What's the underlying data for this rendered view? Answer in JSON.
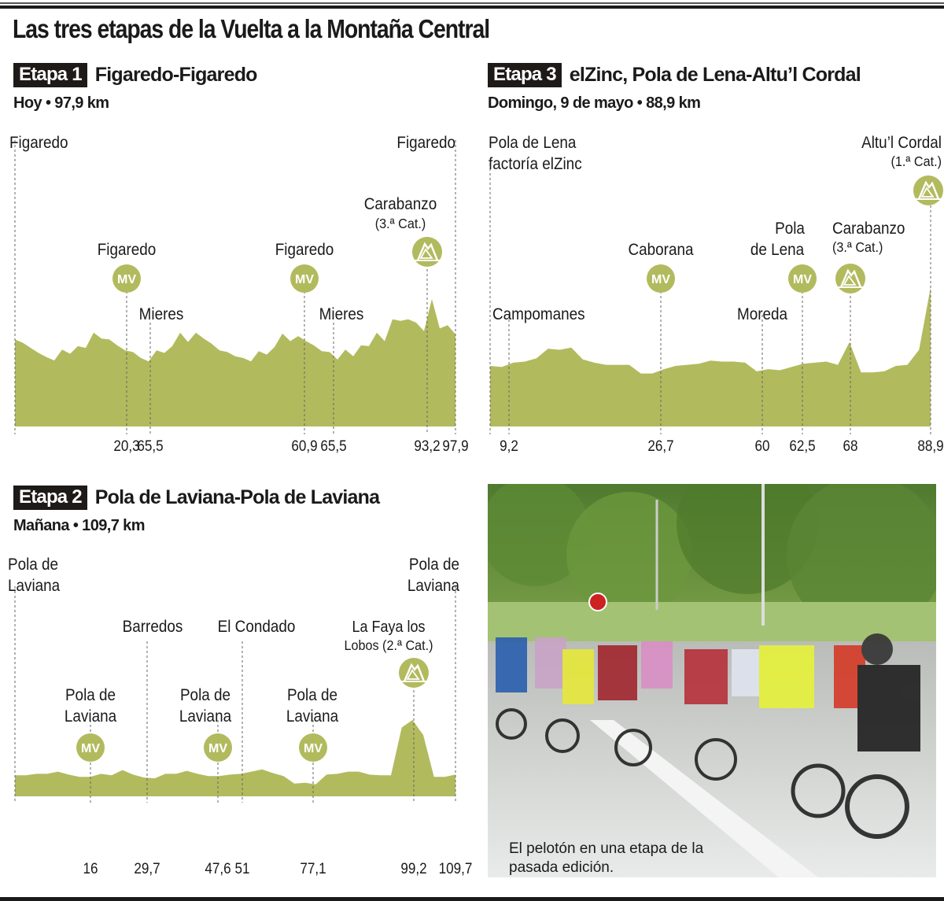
{
  "title": "Las tres etapas de la Vuelta a la Montaña Central",
  "colors": {
    "profile_fill": "#b2ba5e",
    "badge_bg": "#1e1a18",
    "text": "#1a1a1a",
    "guide": "#666666"
  },
  "photo": {
    "caption": "El pelotón en una etapa de la pasada edición.",
    "description": "peloton-of-cyclists-on-wet-road"
  },
  "chart_data": [
    {
      "type": "area",
      "stage_badge": "Etapa 1",
      "title": "Figaredo-Figaredo",
      "subtitle": "Hoy • 97,9 km",
      "xlabel": "km",
      "ylabel": "",
      "grid": false,
      "points": [
        {
          "label": "Figaredo",
          "km": "",
          "tick": "",
          "type": "start"
        },
        {
          "label": "Figaredo",
          "km": "20,3",
          "tick": "20,3",
          "type": "MV"
        },
        {
          "label": "Mieres",
          "km": "65,5",
          "tick": "65,5",
          "type": "town"
        },
        {
          "label": "Figaredo",
          "km": "60,9",
          "tick": "60,9",
          "type": "MV"
        },
        {
          "label": "Mieres",
          "km": "65,5",
          "tick": "65,5",
          "type": "town"
        },
        {
          "label": "Carabanzo",
          "cat": "(3.ª Cat.)",
          "km": "93,2",
          "tick": "93,2",
          "type": "climb"
        },
        {
          "label": "Figaredo",
          "km": "97,9",
          "tick": "97,9",
          "type": "finish"
        }
      ],
      "profile_relative_elevation": [
        0.52,
        0.48,
        0.42,
        0.36,
        0.31,
        0.27,
        0.4,
        0.35,
        0.44,
        0.42,
        0.6,
        0.53,
        0.52,
        0.45,
        0.39,
        0.37,
        0.3,
        0.26,
        0.39,
        0.36,
        0.44,
        0.6,
        0.49,
        0.6,
        0.53,
        0.47,
        0.39,
        0.37,
        0.32,
        0.3,
        0.26,
        0.38,
        0.34,
        0.43,
        0.59,
        0.5,
        0.56,
        0.5,
        0.45,
        0.38,
        0.37,
        0.28,
        0.4,
        0.32,
        0.45,
        0.44,
        0.6,
        0.5,
        0.76,
        0.74,
        0.76,
        0.72,
        0.62,
        1.0,
        0.65,
        0.69,
        0.58
      ]
    },
    {
      "type": "area",
      "stage_badge": "Etapa 3",
      "title": "elZinc, Pola de Lena-Altu’l Cordal",
      "subtitle": "Domingo, 9 de mayo • 88,9 km",
      "xlabel": "km",
      "ylabel": "",
      "grid": false,
      "points": [
        {
          "label": "Pola de Lena factoría elZinc",
          "km": "",
          "tick": "",
          "type": "start"
        },
        {
          "label": "Campomanes",
          "km": "9,2",
          "tick": "9,2",
          "type": "town"
        },
        {
          "label": "Caborana",
          "km": "26,7",
          "tick": "26,7",
          "type": "MV"
        },
        {
          "label": "Moreda",
          "km": "60",
          "tick": "60",
          "type": "town"
        },
        {
          "label": "Pola de Lena",
          "km": "62,5",
          "tick": "62,5",
          "type": "MV"
        },
        {
          "label": "Carabanzo",
          "cat": "(3.ª Cat.)",
          "km": "68",
          "tick": "68",
          "type": "climb"
        },
        {
          "label": "Altu’l Cordal",
          "cat": "(1.ª Cat.)",
          "km": "88,9",
          "tick": "88,9",
          "type": "climb-finish"
        }
      ],
      "profile_relative_elevation": [
        0.27,
        0.26,
        0.3,
        0.31,
        0.34,
        0.43,
        0.42,
        0.44,
        0.33,
        0.3,
        0.28,
        0.28,
        0.28,
        0.2,
        0.2,
        0.24,
        0.27,
        0.28,
        0.29,
        0.32,
        0.31,
        0.31,
        0.3,
        0.22,
        0.24,
        0.23,
        0.26,
        0.29,
        0.3,
        0.31,
        0.28,
        0.49,
        0.21,
        0.21,
        0.22,
        0.27,
        0.28,
        0.42,
        1.0
      ]
    },
    {
      "type": "area",
      "stage_badge": "Etapa 2",
      "title": "Pola de Laviana-Pola de Laviana",
      "subtitle": "Mañana • 109,7 km",
      "xlabel": "km",
      "ylabel": "",
      "grid": false,
      "points": [
        {
          "label": "Pola de Laviana",
          "km": "",
          "tick": "",
          "type": "start"
        },
        {
          "label": "Pola de Laviana",
          "km": "16",
          "tick": "16",
          "type": "MV"
        },
        {
          "label": "Barredos",
          "km": "29,7",
          "tick": "29,7",
          "type": "town"
        },
        {
          "label": "Pola de Laviana",
          "km": "47,6",
          "tick": "47,6",
          "type": "MV"
        },
        {
          "label": "El Condado",
          "km": "51",
          "tick": "51",
          "type": "town"
        },
        {
          "label": "Pola de Laviana",
          "km": "77,1",
          "tick": "77,1",
          "type": "MV"
        },
        {
          "label": "La Faya los Lobos",
          "cat": "(2.ª Cat.)",
          "km": "99,2",
          "tick": "99,2",
          "type": "climb"
        },
        {
          "label": "Pola de Laviana",
          "km": "109,7",
          "tick": "109,7",
          "type": "finish"
        }
      ],
      "profile_relative_elevation": [
        0.26,
        0.26,
        0.28,
        0.28,
        0.31,
        0.27,
        0.24,
        0.24,
        0.28,
        0.26,
        0.33,
        0.27,
        0.23,
        0.22,
        0.28,
        0.28,
        0.32,
        0.28,
        0.25,
        0.25,
        0.27,
        0.28,
        0.31,
        0.34,
        0.29,
        0.25,
        0.15,
        0.16,
        0.14,
        0.27,
        0.28,
        0.31,
        0.31,
        0.27,
        0.26,
        0.26,
        0.9,
        1.0,
        0.8,
        0.24,
        0.24,
        0.27
      ]
    }
  ]
}
